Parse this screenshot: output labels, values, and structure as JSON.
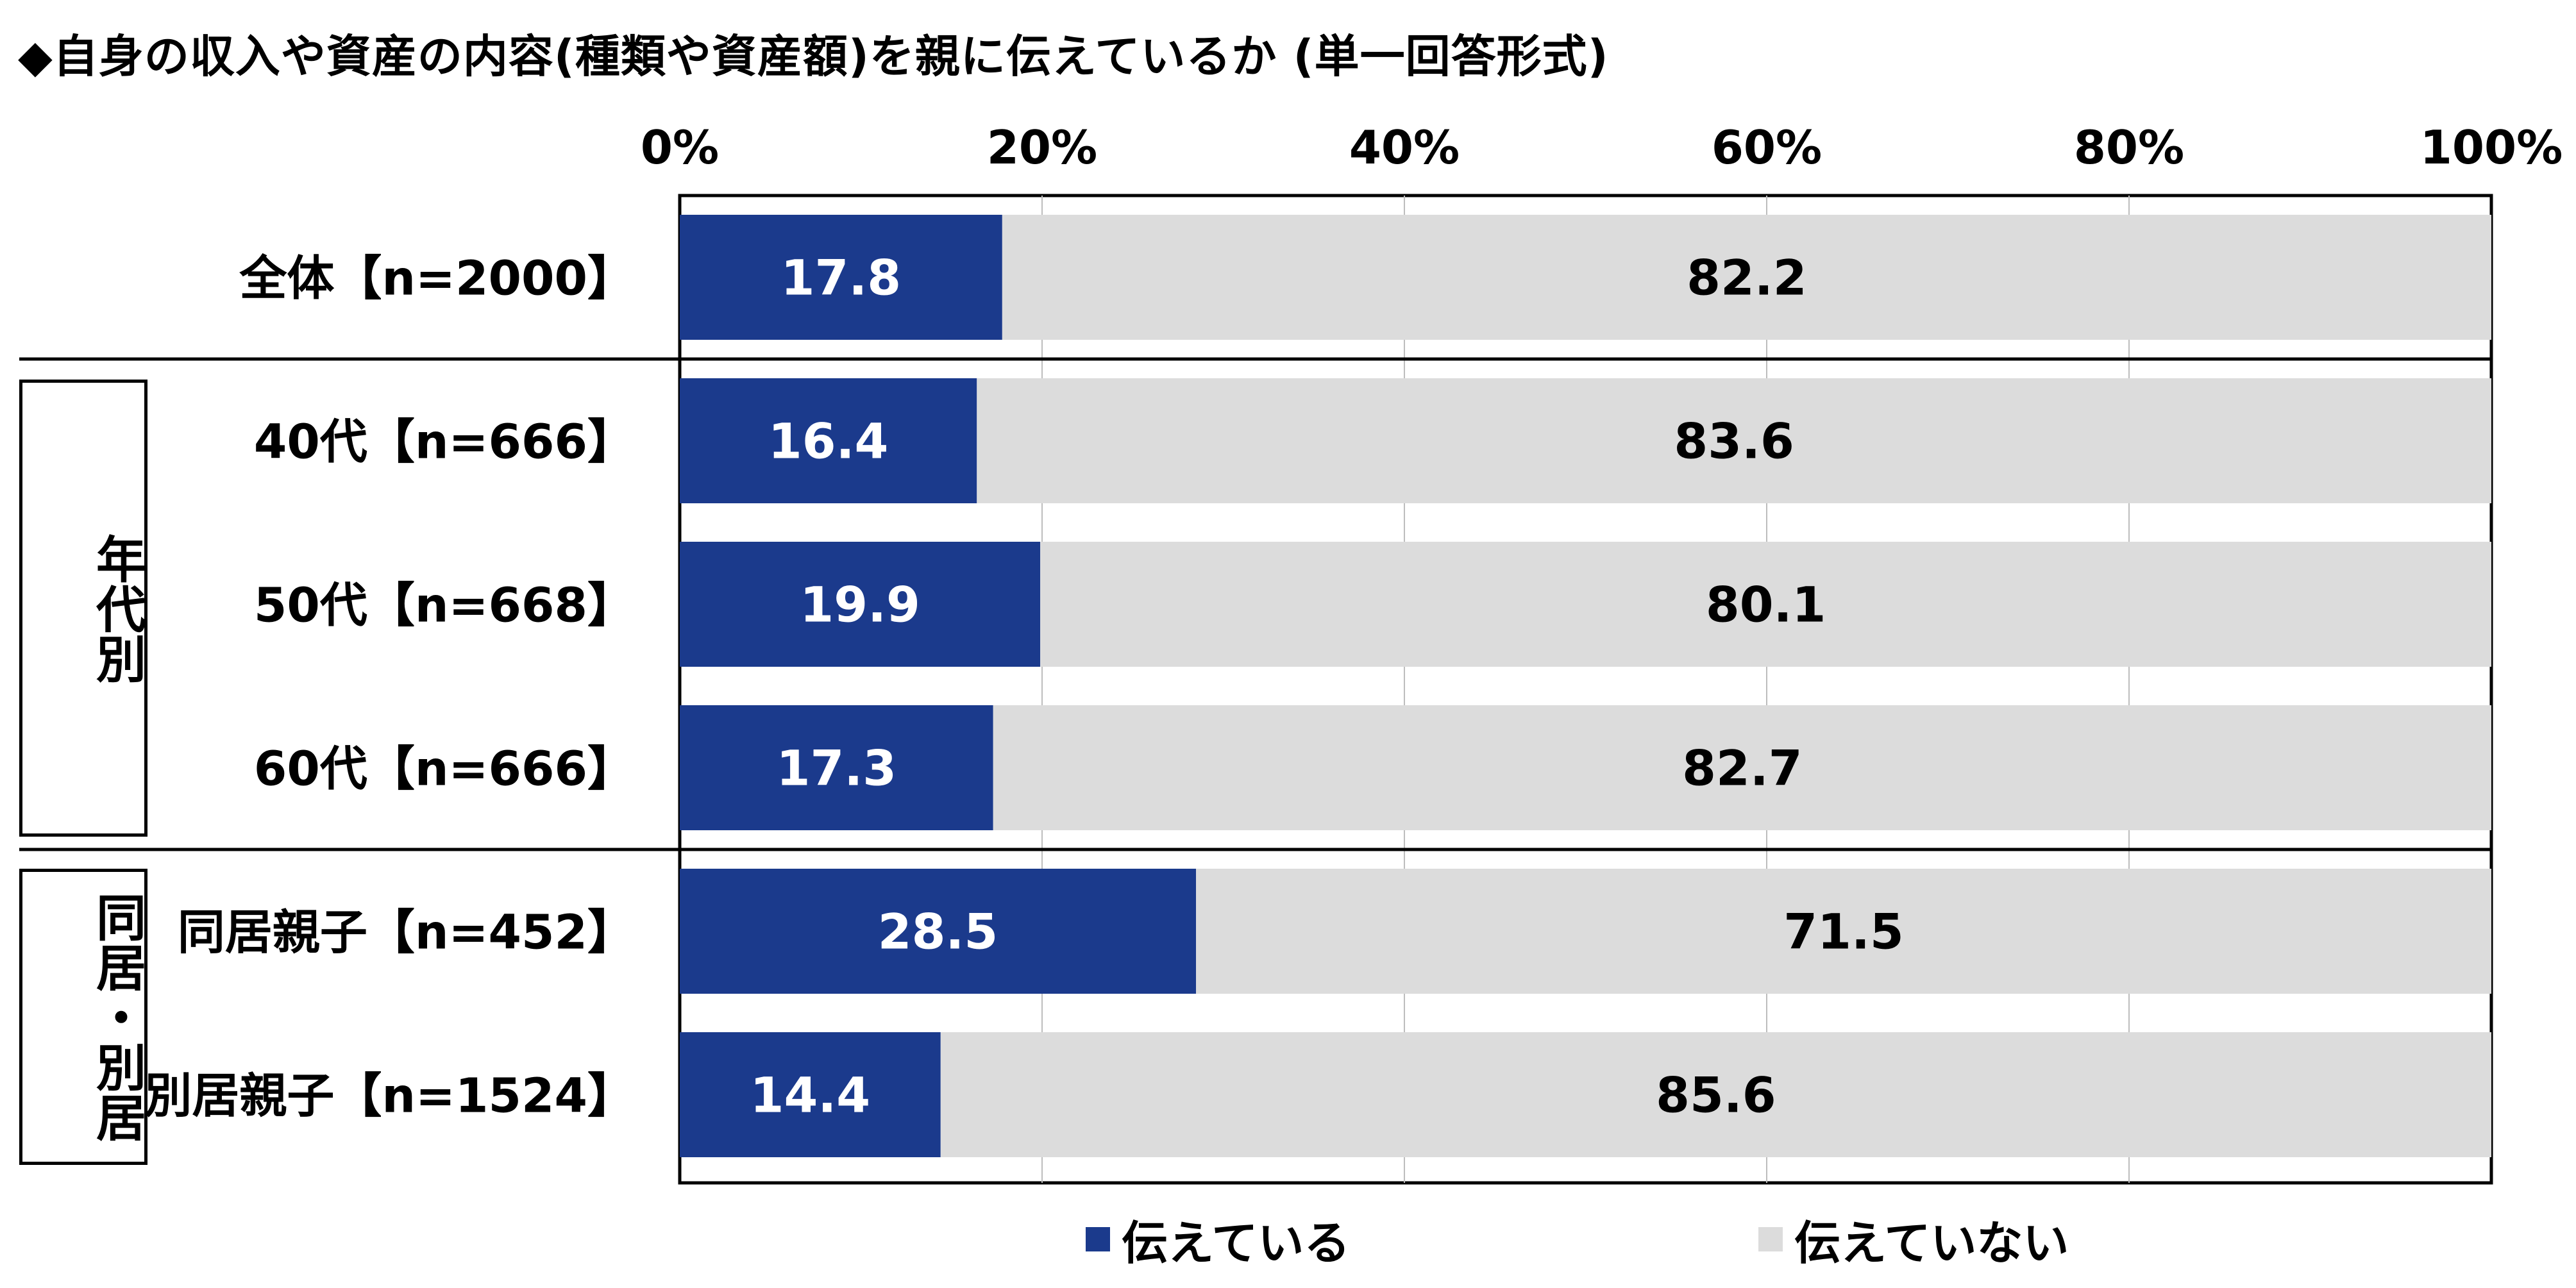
{
  "title": "◆自身の収入や資産の内容(種類や資産額)を親に伝えているか (単一回答形式)",
  "groups": [
    {
      "label": "年代別"
    },
    {
      "label": "同居・別居"
    }
  ],
  "legend": [
    {
      "label": "伝えている",
      "color": "#1b3a8c"
    },
    {
      "label": "伝えていない",
      "color": "#dcdcdc"
    }
  ],
  "chart_data": {
    "type": "bar",
    "orientation": "horizontal",
    "stacked": true,
    "percent": true,
    "title": "◆自身の収入や資産の内容(種類や資産額)を親に伝えているか (単一回答形式)",
    "categories": [
      "全体【n=2000】",
      "40代【n=666】",
      "50代【n=668】",
      "60代【n=666】",
      "同居親子【n=452】",
      "別居親子【n=1524】"
    ],
    "series": [
      {
        "name": "伝えている",
        "values": [
          17.8,
          16.4,
          19.9,
          17.3,
          28.5,
          14.4
        ],
        "color": "#1b3a8c"
      },
      {
        "name": "伝えていない",
        "values": [
          82.2,
          83.6,
          80.1,
          82.7,
          71.5,
          85.6
        ],
        "color": "#dcdcdc"
      }
    ],
    "x_ticks": [
      "0%",
      "20%",
      "40%",
      "60%",
      "80%",
      "100%"
    ],
    "xlim": [
      0,
      100
    ],
    "xaxis_position": "top",
    "legend_position": "bottom",
    "grid": true
  }
}
